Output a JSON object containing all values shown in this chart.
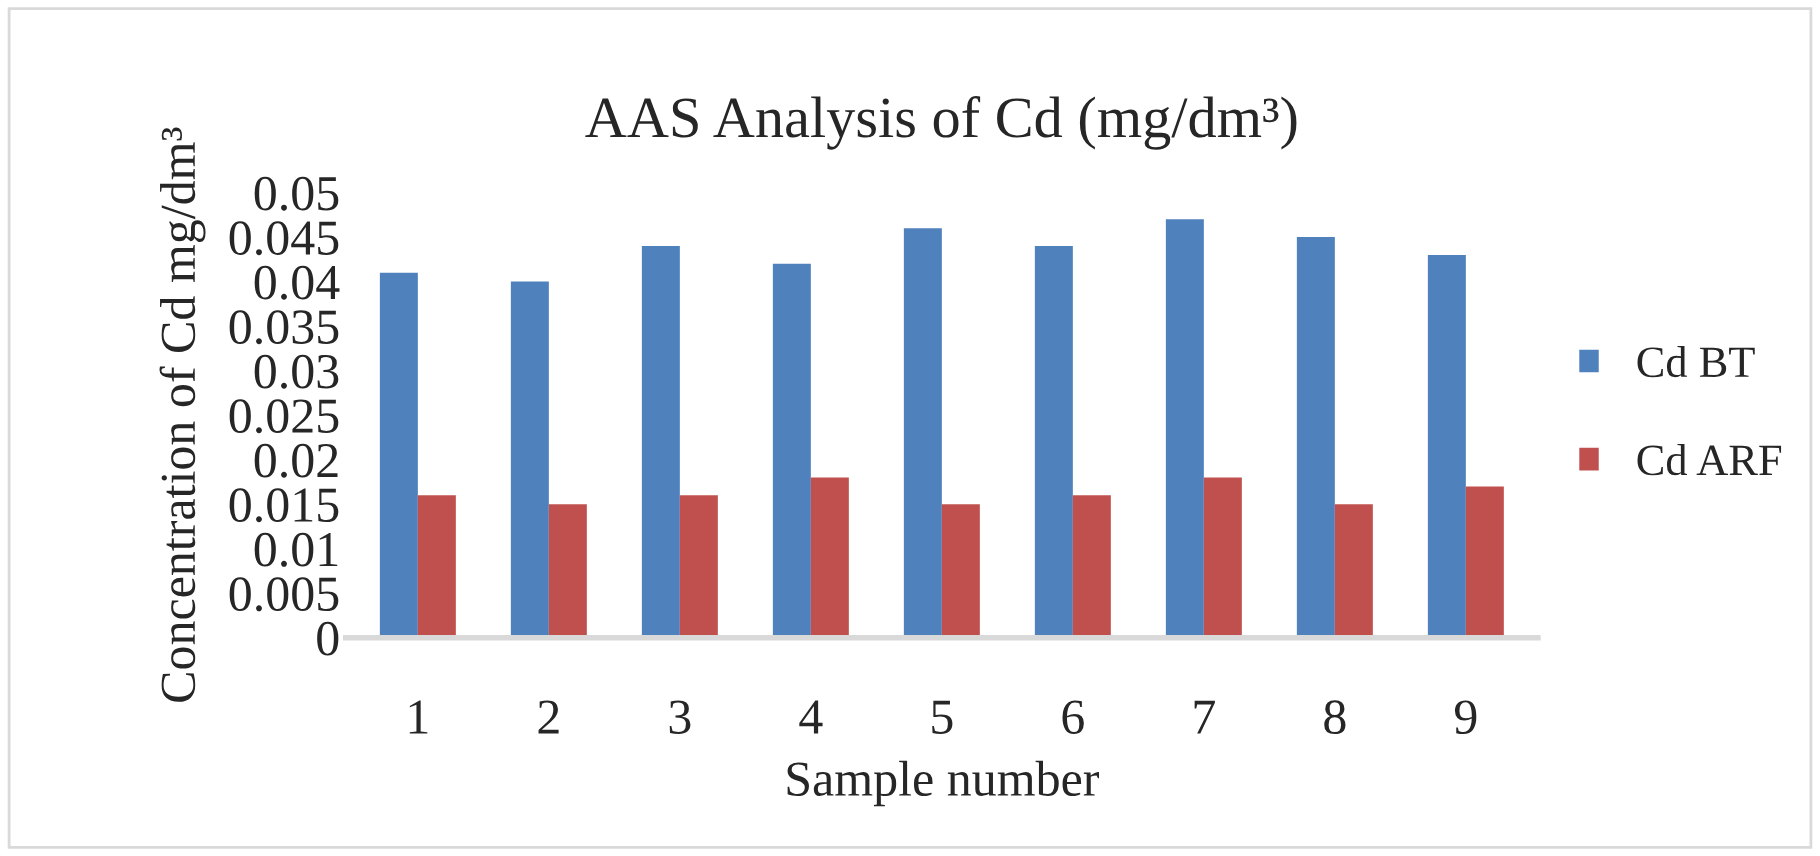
{
  "chart_data": {
    "type": "bar",
    "title": "AAS Analysis of Cd (mg/dm³)",
    "xlabel": "Sample number",
    "ylabel": "Concentration of Cd mg/dm³",
    "categories": [
      "1",
      "2",
      "3",
      "4",
      "5",
      "6",
      "7",
      "8",
      "9"
    ],
    "series": [
      {
        "name": "Cd BT",
        "color": "#4f81bd",
        "values": [
          0.041,
          0.04,
          0.044,
          0.042,
          0.046,
          0.044,
          0.047,
          0.045,
          0.043
        ]
      },
      {
        "name": "Cd ARF",
        "color": "#c0504d",
        "values": [
          0.016,
          0.015,
          0.016,
          0.018,
          0.015,
          0.016,
          0.018,
          0.015,
          0.017
        ]
      }
    ],
    "ylim": [
      0,
      0.05
    ],
    "yticks": [
      0,
      0.005,
      0.01,
      0.015,
      0.02,
      0.025,
      0.03,
      0.035,
      0.04,
      0.045,
      0.05
    ],
    "grid": false,
    "legend": "right"
  }
}
